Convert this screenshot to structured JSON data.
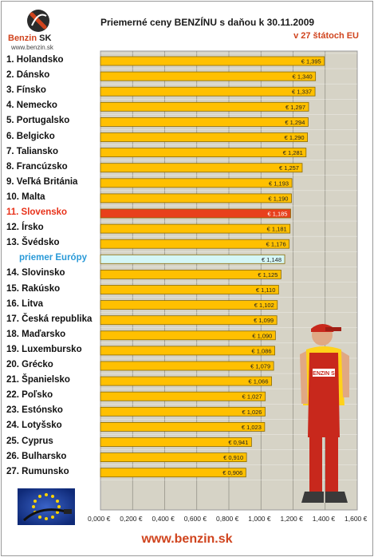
{
  "logo": {
    "brand": "Benzin",
    "brand_suffix": "SK",
    "url": "www.benzin.sk",
    "accent": "#d0441e"
  },
  "footer": {
    "url": "www.benzin.sk"
  },
  "mascot": {
    "label": "BENZIN SK"
  },
  "colors": {
    "bar": "#ffc000",
    "bar_stroke": "#8a6a00",
    "highlight": "#e8401c",
    "europe": "#d4f6f6",
    "plot_bg": "#d6d3c6",
    "plot_border": "#999999"
  },
  "chart_data": {
    "type": "bar",
    "orientation": "horizontal",
    "title": "Priemerné ceny BENZÍNU s daňou k 30.11.2009",
    "subtitle": "v 27 štátoch EU",
    "xlim": [
      0,
      1.6
    ],
    "xticks": [
      "0,000 €",
      "0,200 €",
      "0,400 €",
      "0,600 €",
      "0,800 €",
      "1,000 €",
      "1,200 €",
      "1,400 €",
      "1,600 €"
    ],
    "grid": true,
    "categories": [
      "1. Holandsko",
      "2. Dánsko",
      "3. Fínsko",
      "4. Nemecko",
      "5. Portugalsko",
      "6. Belgicko",
      "7. Taliansko",
      "8. Francúzsko",
      "9. Veľká Británia",
      "10. Malta",
      "11. Slovensko",
      "12. Írsko",
      "13. Švédsko",
      "priemer Európy",
      "14. Slovinsko",
      "15. Rakúsko",
      "16. Litva",
      "17. Česká republika",
      "18. Maďarsko",
      "19. Luxembursko",
      "20. Grécko",
      "21. Španielsko",
      "22. Poľsko",
      "23. Estónsko",
      "24. Lotyšsko",
      "25. Cyprus",
      "26. Bulharsko",
      "27. Rumunsko"
    ],
    "values": [
      1.395,
      1.34,
      1.337,
      1.297,
      1.294,
      1.29,
      1.281,
      1.257,
      1.193,
      1.19,
      1.185,
      1.181,
      1.176,
      1.148,
      1.125,
      1.11,
      1.102,
      1.099,
      1.09,
      1.086,
      1.079,
      1.066,
      1.027,
      1.026,
      1.023,
      0.941,
      0.91,
      0.906
    ],
    "labels": [
      "€ 1,395",
      "€ 1,340",
      "€ 1,337",
      "€ 1,297",
      "€ 1,294",
      "€ 1,290",
      "€ 1,281",
      "€ 1,257",
      "€ 1,193",
      "€ 1,190",
      "€ 1,185",
      "€ 1,181",
      "€ 1,176",
      "€ 1,148",
      "€ 1,125",
      "€ 1,110",
      "€ 1,102",
      "€ 1,099",
      "€ 1,090",
      "€ 1,086",
      "€ 1,079",
      "€ 1,066",
      "€ 1,027",
      "€ 1,026",
      "€ 1,023",
      "€ 0,941",
      "€ 0,910",
      "€ 0,906"
    ],
    "highlight_category": "11. Slovensko",
    "average_category": "priemer Európy"
  }
}
